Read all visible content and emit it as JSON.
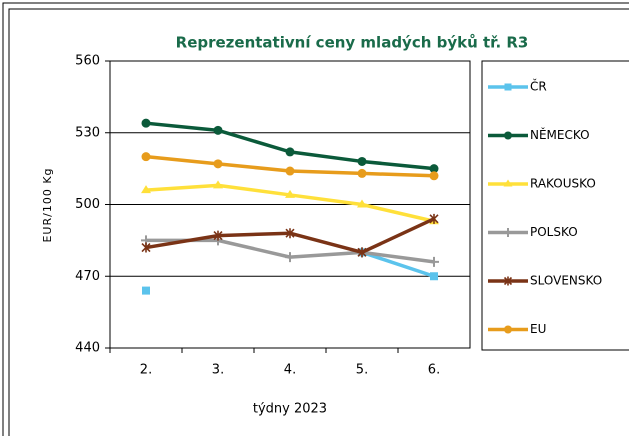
{
  "chart_data": {
    "type": "line",
    "title": "Reprezentativní  ceny mladých býků tř. R3",
    "y_label": "EUR/100 Kg",
    "x_label": "týdny 2023",
    "categories": [
      "2.",
      "3.",
      "4.",
      "5.",
      "6."
    ],
    "ylim": [
      440,
      560
    ],
    "yticks": [
      440,
      470,
      500,
      530,
      560
    ],
    "grid": true,
    "legend": "right",
    "series": [
      {
        "name": "ČR",
        "color": "#5bc3ec",
        "marker": "square",
        "values": [
          464,
          null,
          null,
          480,
          470
        ]
      },
      {
        "name": "NĚMECKO",
        "color": "#0b5a3a",
        "marker": "circle",
        "values": [
          534,
          531,
          522,
          518,
          515
        ]
      },
      {
        "name": "RAKOUSKO",
        "color": "#ffe03a",
        "marker": "triangle",
        "values": [
          506,
          508,
          504,
          500,
          493
        ]
      },
      {
        "name": "POLSKO",
        "color": "#999999",
        "marker": "plus",
        "values": [
          485,
          485,
          478,
          480,
          476
        ]
      },
      {
        "name": "SLOVENSKO",
        "color": "#7a3316",
        "marker": "star",
        "values": [
          482,
          487,
          488,
          480,
          494
        ]
      },
      {
        "name": "EU",
        "color": "#e79c1c",
        "marker": "circle",
        "values": [
          520,
          517,
          514,
          513,
          512
        ]
      }
    ]
  }
}
